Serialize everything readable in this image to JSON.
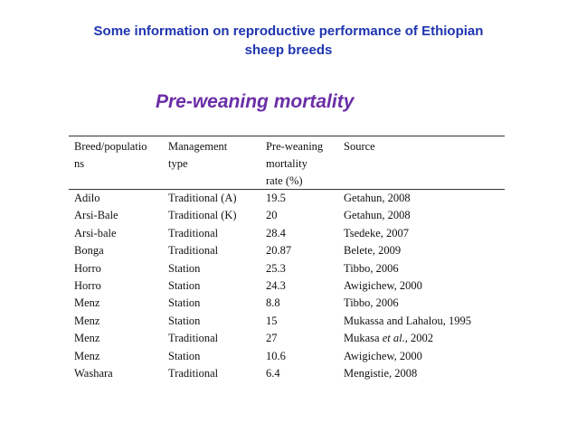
{
  "slide": {
    "title_line1": "Some information on reproductive performance of Ethiopian",
    "title_line2": "sheep breeds",
    "subtitle": "Pre-weaning mortality"
  },
  "table": {
    "headers": [
      [
        "Breed/populatio",
        "ns"
      ],
      [
        "Management",
        "type"
      ],
      [
        "Pre-weaning",
        "mortality",
        "rate (%)"
      ],
      [
        "Source"
      ]
    ],
    "rows": [
      {
        "breed": "Adilo",
        "management": "Traditional (A)",
        "rate": "19.5",
        "source": "Getahun, 2008"
      },
      {
        "breed": "Arsi-Bale",
        "management": "Traditional  (K)",
        "rate": "20",
        "source": "Getahun, 2008"
      },
      {
        "breed": "Arsi-bale",
        "management": "Traditional",
        "rate": "28.4",
        "source": "Tsedeke, 2007"
      },
      {
        "breed": "Bonga",
        "management": "Traditional",
        "rate": "20.87",
        "source": "Belete, 2009"
      },
      {
        "breed": "Horro",
        "management": "Station",
        "rate": "25.3",
        "source": "Tibbo, 2006"
      },
      {
        "breed": "Horro",
        "management": "Station",
        "rate": "24.3",
        "source": "Awigichew, 2000"
      },
      {
        "breed": "Menz",
        "management": "Station",
        "rate": "8.8",
        "source": "Tibbo, 2006"
      },
      {
        "breed": "Menz",
        "management": "Station",
        "rate": "15",
        "source": "Mukassa and Lahalou, 1995"
      },
      {
        "breed": "Menz",
        "management": "Traditional",
        "rate": "27",
        "source": "Mukasa et al., 2002"
      },
      {
        "breed": "Menz",
        "management": "Station",
        "rate": "10.6",
        "source": "Awigichew, 2000"
      },
      {
        "breed": "Washara",
        "management": "Traditional",
        "rate": "6.4",
        "source": "Mengistie, 2008"
      }
    ]
  }
}
